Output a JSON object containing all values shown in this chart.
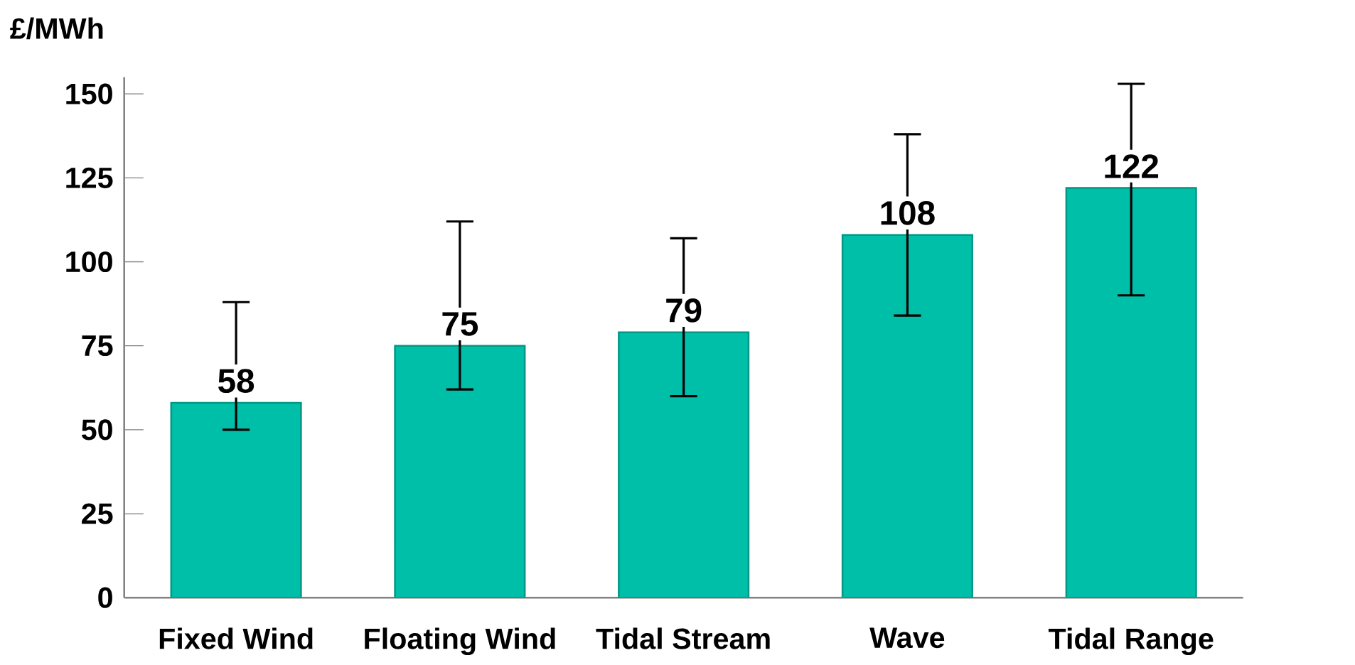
{
  "chart_data": {
    "type": "bar",
    "ylabel": "£/MWh",
    "categories": [
      "Fixed Wind",
      "Floating Wind",
      "Tidal Stream",
      "Wave",
      "Tidal Range"
    ],
    "values": [
      58,
      75,
      79,
      108,
      122
    ],
    "errors": [
      [
        50,
        88
      ],
      [
        62,
        112
      ],
      [
        60,
        107
      ],
      [
        84,
        138
      ],
      [
        90,
        153
      ]
    ],
    "color": "#00bfa8",
    "ylim": [
      0,
      155
    ],
    "yticks": [
      0,
      25,
      50,
      75,
      100,
      125,
      150
    ],
    "data_labels": true,
    "grid": false
  }
}
